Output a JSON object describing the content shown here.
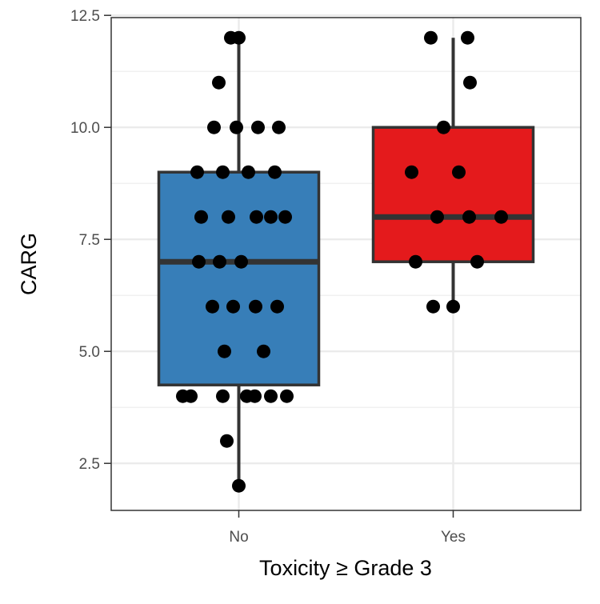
{
  "chart_data": {
    "type": "box",
    "xlabel": "Toxicity ≥ Grade 3",
    "ylabel": "CARG",
    "ylim": [
      1.45,
      12.45
    ],
    "yticks": [
      "2.5",
      "5.0",
      "7.5",
      "10.0",
      "12.5"
    ],
    "ytick_values": [
      2.5,
      5.0,
      7.5,
      10.0,
      12.5
    ],
    "categories": [
      "No",
      "Yes"
    ],
    "grid": true,
    "legend": "none",
    "groups": [
      {
        "category": "No",
        "color": "#377eb8",
        "box": {
          "min": 2,
          "q1": 4.25,
          "median": 7,
          "q3": 9,
          "max": 12
        },
        "points": [
          12,
          12,
          11,
          10,
          10,
          10,
          10,
          9,
          9,
          9,
          9,
          8,
          8,
          8,
          8,
          8,
          7,
          7,
          7,
          6,
          6,
          6,
          6,
          5,
          5,
          4,
          4,
          4,
          4,
          4,
          4,
          4,
          3,
          2
        ],
        "point_jitter": [
          -0.1,
          0.0,
          -0.25,
          -0.31,
          -0.03,
          0.24,
          0.5,
          -0.52,
          -0.2,
          0.12,
          0.45,
          -0.47,
          -0.13,
          0.22,
          0.4,
          0.58,
          -0.5,
          -0.24,
          0.03,
          -0.33,
          -0.07,
          0.21,
          0.48,
          -0.18,
          0.31,
          -0.7,
          -0.6,
          -0.2,
          0.1,
          0.2,
          0.4,
          0.6,
          -0.15,
          0.0
        ]
      },
      {
        "category": "Yes",
        "color": "#e41a1c",
        "box": {
          "min": 6,
          "q1": 7,
          "median": 8,
          "q3": 10,
          "max": 12
        },
        "points": [
          12,
          12,
          11,
          10,
          9,
          9,
          8,
          8,
          8,
          7,
          7,
          6,
          6
        ],
        "point_jitter": [
          -0.28,
          0.18,
          0.21,
          -0.12,
          -0.52,
          0.07,
          -0.2,
          0.2,
          0.6,
          -0.47,
          0.3,
          -0.25,
          0.0
        ]
      }
    ]
  }
}
